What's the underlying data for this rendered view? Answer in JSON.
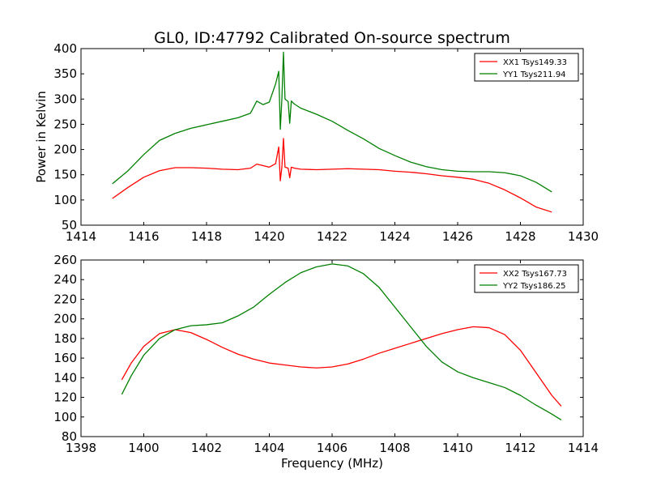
{
  "figure": {
    "title": "GL0, ID:47792 Calibrated On-source spectrum",
    "ylabel": "Power in Kelvin",
    "xlabel": "Frequency (MHz)"
  },
  "chart_data": [
    {
      "type": "line",
      "title": "GL0, ID:47792 Calibrated On-source spectrum",
      "xlabel": "",
      "ylabel": "Power in Kelvin",
      "xlim": [
        1414,
        1430
      ],
      "ylim": [
        50,
        400
      ],
      "xticks": [
        1414,
        1416,
        1418,
        1420,
        1422,
        1424,
        1426,
        1428,
        1430
      ],
      "yticks": [
        50,
        100,
        150,
        200,
        250,
        300,
        350,
        400
      ],
      "legend_position": "top-right",
      "grid": false,
      "series": [
        {
          "name": "XX1 Tsys149.33",
          "color": "#ff0000",
          "x": [
            1415.0,
            1415.5,
            1416.0,
            1416.5,
            1417.0,
            1417.5,
            1418.0,
            1418.5,
            1419.0,
            1419.4,
            1419.6,
            1419.8,
            1420.0,
            1420.2,
            1420.3,
            1420.35,
            1420.4,
            1420.45,
            1420.5,
            1420.6,
            1420.65,
            1420.7,
            1420.8,
            1421.0,
            1421.5,
            1422.0,
            1422.5,
            1423.0,
            1423.5,
            1424.0,
            1424.5,
            1425.0,
            1425.5,
            1426.0,
            1426.5,
            1427.0,
            1427.5,
            1428.0,
            1428.5,
            1429.0
          ],
          "y": [
            103,
            125,
            145,
            158,
            164,
            164,
            163,
            161,
            160,
            163,
            171,
            168,
            165,
            172,
            205,
            138,
            165,
            222,
            165,
            163,
            144,
            165,
            163,
            161,
            160,
            161,
            162,
            161,
            160,
            157,
            155,
            152,
            148,
            145,
            141,
            133,
            120,
            104,
            86,
            76
          ]
        },
        {
          "name": "YY1 Tsys211.94",
          "color": "#008000",
          "x": [
            1415.0,
            1415.5,
            1416.0,
            1416.5,
            1417.0,
            1417.5,
            1418.0,
            1418.5,
            1419.0,
            1419.4,
            1419.6,
            1419.8,
            1420.0,
            1420.2,
            1420.3,
            1420.35,
            1420.4,
            1420.45,
            1420.5,
            1420.6,
            1420.65,
            1420.7,
            1420.8,
            1421.0,
            1421.5,
            1422.0,
            1422.5,
            1423.0,
            1423.5,
            1424.0,
            1424.5,
            1425.0,
            1425.5,
            1426.0,
            1426.5,
            1427.0,
            1427.5,
            1428.0,
            1428.5,
            1429.0
          ],
          "y": [
            132,
            158,
            190,
            218,
            232,
            242,
            249,
            256,
            263,
            272,
            296,
            289,
            294,
            330,
            355,
            240,
            300,
            393,
            300,
            295,
            252,
            296,
            290,
            282,
            270,
            256,
            238,
            221,
            202,
            188,
            175,
            166,
            160,
            157,
            156,
            156,
            154,
            148,
            135,
            116
          ]
        }
      ]
    },
    {
      "type": "line",
      "title": "",
      "xlabel": "Frequency (MHz)",
      "ylabel": "",
      "xlim": [
        1398,
        1414
      ],
      "ylim": [
        80,
        260
      ],
      "xticks": [
        1398,
        1400,
        1402,
        1404,
        1406,
        1408,
        1410,
        1412,
        1414
      ],
      "yticks": [
        80,
        100,
        120,
        140,
        160,
        180,
        200,
        220,
        240,
        260
      ],
      "legend_position": "top-right",
      "grid": false,
      "series": [
        {
          "name": "XX2 Tsys167.73",
          "color": "#ff0000",
          "x": [
            1399.3,
            1399.6,
            1400.0,
            1400.5,
            1401.0,
            1401.5,
            1402.0,
            1402.5,
            1403.0,
            1403.5,
            1404.0,
            1404.5,
            1405.0,
            1405.5,
            1406.0,
            1406.5,
            1407.0,
            1407.5,
            1408.0,
            1408.5,
            1409.0,
            1409.5,
            1410.0,
            1410.5,
            1411.0,
            1411.5,
            1412.0,
            1412.5,
            1413.0,
            1413.3
          ],
          "y": [
            138,
            155,
            172,
            185,
            189,
            186,
            179,
            171,
            164,
            159,
            155,
            153,
            151,
            150,
            151,
            154,
            159,
            165,
            170,
            175,
            180,
            185,
            189,
            192,
            191,
            184,
            168,
            145,
            122,
            111
          ]
        },
        {
          "name": "YY2 Tsys186.25",
          "color": "#008000",
          "x": [
            1399.3,
            1399.6,
            1400.0,
            1400.5,
            1401.0,
            1401.5,
            1402.0,
            1402.5,
            1403.0,
            1403.5,
            1404.0,
            1404.5,
            1405.0,
            1405.5,
            1406.0,
            1406.5,
            1407.0,
            1407.5,
            1408.0,
            1408.5,
            1409.0,
            1409.5,
            1410.0,
            1410.5,
            1411.0,
            1411.5,
            1412.0,
            1412.5,
            1413.0,
            1413.3
          ],
          "y": [
            123,
            142,
            163,
            180,
            189,
            193,
            194,
            196,
            203,
            212,
            225,
            237,
            247,
            253,
            256,
            254,
            246,
            232,
            212,
            192,
            172,
            156,
            146,
            140,
            135,
            130,
            122,
            112,
            103,
            97
          ]
        }
      ]
    }
  ]
}
